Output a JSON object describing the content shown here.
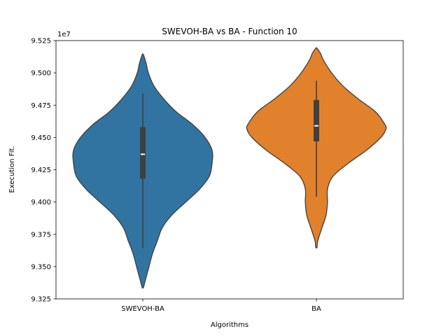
{
  "chart_data": {
    "type": "violin",
    "title": "SWEVOH-BA vs BA - Function 10",
    "xlabel": "Algorithms",
    "ylabel": "Execution Fit.",
    "y_scale_label": "1e7",
    "y_scale": 10000000,
    "ylim": [
      9.325,
      9.525
    ],
    "yticks": [
      9.325,
      9.35,
      9.375,
      9.4,
      9.425,
      9.45,
      9.475,
      9.5,
      9.525
    ],
    "ytick_labels": [
      "9.325",
      "9.350",
      "9.375",
      "9.400",
      "9.425",
      "9.450",
      "9.475",
      "9.500",
      "9.525"
    ],
    "categories": [
      "SWEVOH-BA",
      "BA"
    ],
    "grid": false,
    "series": [
      {
        "color": "#3274a1",
        "min": 9.364,
        "q1": 9.418,
        "median": 9.437,
        "q3": 9.458,
        "max": 9.484,
        "density": [
          [
            9.334,
            0.01
          ],
          [
            9.34,
            0.04
          ],
          [
            9.35,
            0.09
          ],
          [
            9.36,
            0.14
          ],
          [
            9.37,
            0.21
          ],
          [
            9.38,
            0.28
          ],
          [
            9.39,
            0.42
          ],
          [
            9.4,
            0.62
          ],
          [
            9.41,
            0.82
          ],
          [
            9.42,
            0.96
          ],
          [
            9.43,
            1.0
          ],
          [
            9.44,
            1.0
          ],
          [
            9.45,
            0.9
          ],
          [
            9.46,
            0.72
          ],
          [
            9.47,
            0.48
          ],
          [
            9.48,
            0.3
          ],
          [
            9.49,
            0.16
          ],
          [
            9.5,
            0.08
          ],
          [
            9.507,
            0.05
          ],
          [
            9.514,
            0.01
          ]
        ]
      },
      {
        "color": "#e1812c",
        "min": 9.404,
        "q1": 9.447,
        "median": 9.459,
        "q3": 9.479,
        "max": 9.494,
        "density": [
          [
            9.365,
            0.01
          ],
          [
            9.37,
            0.02
          ],
          [
            9.38,
            0.08
          ],
          [
            9.39,
            0.14
          ],
          [
            9.4,
            0.16
          ],
          [
            9.41,
            0.16
          ],
          [
            9.42,
            0.24
          ],
          [
            9.43,
            0.46
          ],
          [
            9.44,
            0.72
          ],
          [
            9.45,
            0.93
          ],
          [
            9.456,
            1.0
          ],
          [
            9.46,
            0.99
          ],
          [
            9.47,
            0.85
          ],
          [
            9.48,
            0.6
          ],
          [
            9.49,
            0.38
          ],
          [
            9.5,
            0.22
          ],
          [
            9.51,
            0.1
          ],
          [
            9.515,
            0.06
          ],
          [
            9.519,
            0.01
          ]
        ]
      }
    ]
  }
}
